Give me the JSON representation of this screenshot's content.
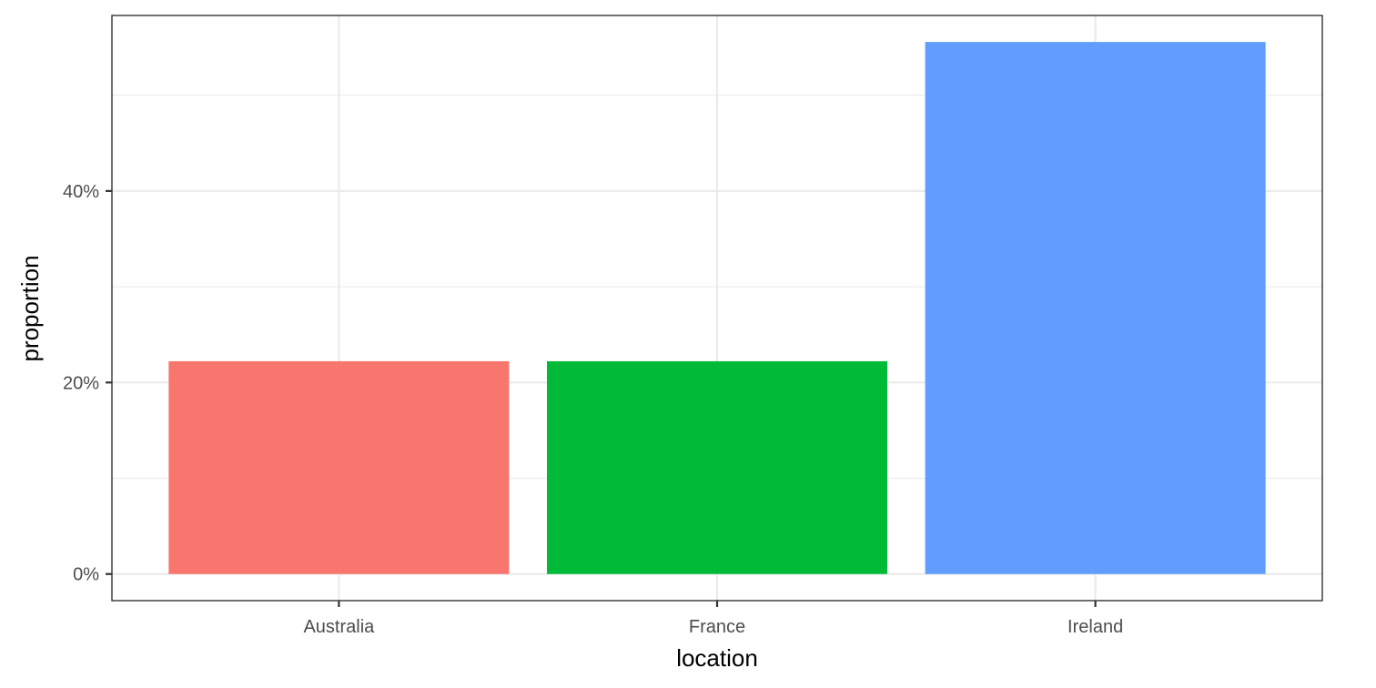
{
  "chart_data": {
    "type": "bar",
    "categories": [
      "Australia",
      "France",
      "Ireland"
    ],
    "values": [
      0.2222,
      0.2222,
      0.5556
    ],
    "colors": [
      "#F8766D",
      "#00BA38",
      "#619CFF"
    ],
    "xlabel": "location",
    "ylabel": "proportion",
    "ylim": [
      -0.0278,
      0.5833
    ],
    "yticks": [
      0,
      0.2,
      0.4
    ],
    "ytick_labels": [
      "0%",
      "20%",
      "40%"
    ],
    "y_minor": [
      0.1,
      0.3,
      0.5
    ],
    "grid": true,
    "legend": "none"
  }
}
